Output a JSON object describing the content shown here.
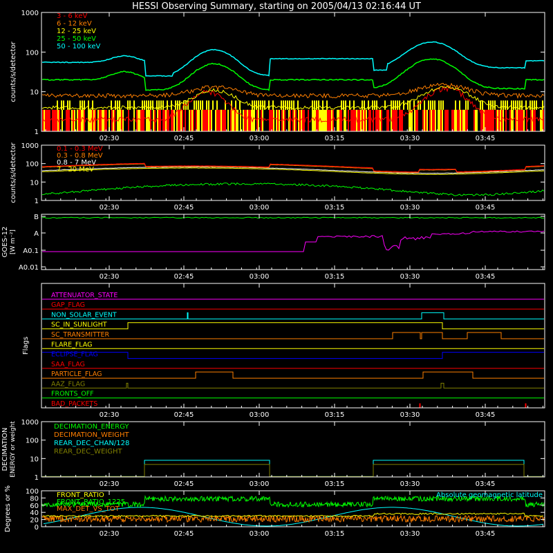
{
  "title": "HESSI Observing Summary, starting on 2005/04/13 02:16:44 UT",
  "time_ticks": [
    "02:30",
    "02:45",
    "03:00",
    "03:15",
    "03:30",
    "03:45"
  ],
  "chart_data": [
    {
      "type": "line",
      "panel": "low-energy-rates",
      "ylabel": "counts/s/detector",
      "yscale": "log",
      "ylim": [
        1,
        1000
      ],
      "ytick_labels": [
        "1",
        "10",
        "100",
        "1000"
      ],
      "legend_placement": "top-left",
      "series": [
        {
          "name": "3 - 6 keV",
          "color": "#ff0000"
        },
        {
          "name": "6 - 12 keV",
          "color": "#ff7f00"
        },
        {
          "name": "12 - 25 keV",
          "color": "#ffff00"
        },
        {
          "name": "25 - 50 keV",
          "color": "#00ff00"
        },
        {
          "name": "50 - 100 keV",
          "color": "#00ffff"
        }
      ]
    },
    {
      "type": "line",
      "panel": "high-energy-rates",
      "ylabel": "counts/s/detector",
      "yscale": "log",
      "ylim": [
        1,
        1000
      ],
      "ytick_labels": [
        "1",
        "10",
        "100",
        "1000"
      ],
      "legend_placement": "top-left",
      "series": [
        {
          "name": "0.1 - 0.3 MeV",
          "color": "#ff0000"
        },
        {
          "name": "0.3 - 0.8 MeV",
          "color": "#ff7f00"
        },
        {
          "name": "0.8 - 7 MeV",
          "color": "#ffffff"
        },
        {
          "name": "7 - 20 MeV",
          "color": "#ffff00"
        }
      ]
    },
    {
      "type": "line",
      "panel": "goes",
      "ylabel": "GOES-12",
      "ylabel2": "[W m⁻²]",
      "ytick_labels": [
        "B",
        "A",
        "A0.1",
        "A0.01"
      ],
      "series": [
        {
          "color": "#00ff00"
        },
        {
          "color": "#ff00ff"
        }
      ]
    },
    {
      "type": "line",
      "panel": "flags",
      "ylabel": "Flags",
      "flags": [
        {
          "name": "ATTENUATOR_STATE",
          "color": "#ff00ff"
        },
        {
          "name": "GAP_FLAG",
          "color": "#ff0000"
        },
        {
          "name": "NON_SOLAR_EVENT",
          "color": "#00ffff"
        },
        {
          "name": "SC_IN_SUNLIGHT",
          "color": "#ffff00"
        },
        {
          "name": "SC_TRANSMITTER",
          "color": "#ff7f00"
        },
        {
          "name": "FLARE_FLAG",
          "color": "#ffff00"
        },
        {
          "name": "ECLIPSE_FLAG",
          "color": "#0000ff"
        },
        {
          "name": "SAA_FLAG",
          "color": "#ff0000"
        },
        {
          "name": "PARTICLE_FLAG",
          "color": "#ff7f00"
        },
        {
          "name": "AAZ_FLAG",
          "color": "#808000"
        },
        {
          "name": "FRONTS_OFF",
          "color": "#00ff00"
        },
        {
          "name": "BAD_PACKETS",
          "color": "#ff0000"
        }
      ]
    },
    {
      "type": "line",
      "panel": "decimation",
      "ylabel": "DECIMATION",
      "ylabel2": "ENERGY or weight",
      "yscale": "log",
      "ylim": [
        1,
        1000
      ],
      "ytick_labels": [
        "1",
        "10",
        "100",
        "1000"
      ],
      "legend_placement": "top-left",
      "series": [
        {
          "name": "DECIMATION_ENERGY",
          "color": "#00ff00"
        },
        {
          "name": "DECIMATION_WEIGHT",
          "color": "#ff7f00"
        },
        {
          "name": "REAR_DEC_CHAN/128",
          "color": "#00ffff"
        },
        {
          "name": "REAR_DEC_WEIGHT",
          "color": "#808000"
        }
      ]
    },
    {
      "type": "line",
      "panel": "ratios",
      "ylabel": "Degrees or %",
      "ylim": [
        0,
        100
      ],
      "ytick_labels": [
        "0",
        "20",
        "40",
        "60",
        "80",
        "100"
      ],
      "legend_placement": "top-left",
      "series": [
        {
          "name": "FRONT_RATIO",
          "color": "#ffff00"
        },
        {
          "name": "FRONT_RATIO_1225",
          "color": "#00ff00"
        },
        {
          "name": "MAX_DET_VS_TOT",
          "color": "#ff7f00"
        },
        {
          "name": "Absolute geomagnetic latitude",
          "color": "#00ffff"
        }
      ]
    }
  ]
}
